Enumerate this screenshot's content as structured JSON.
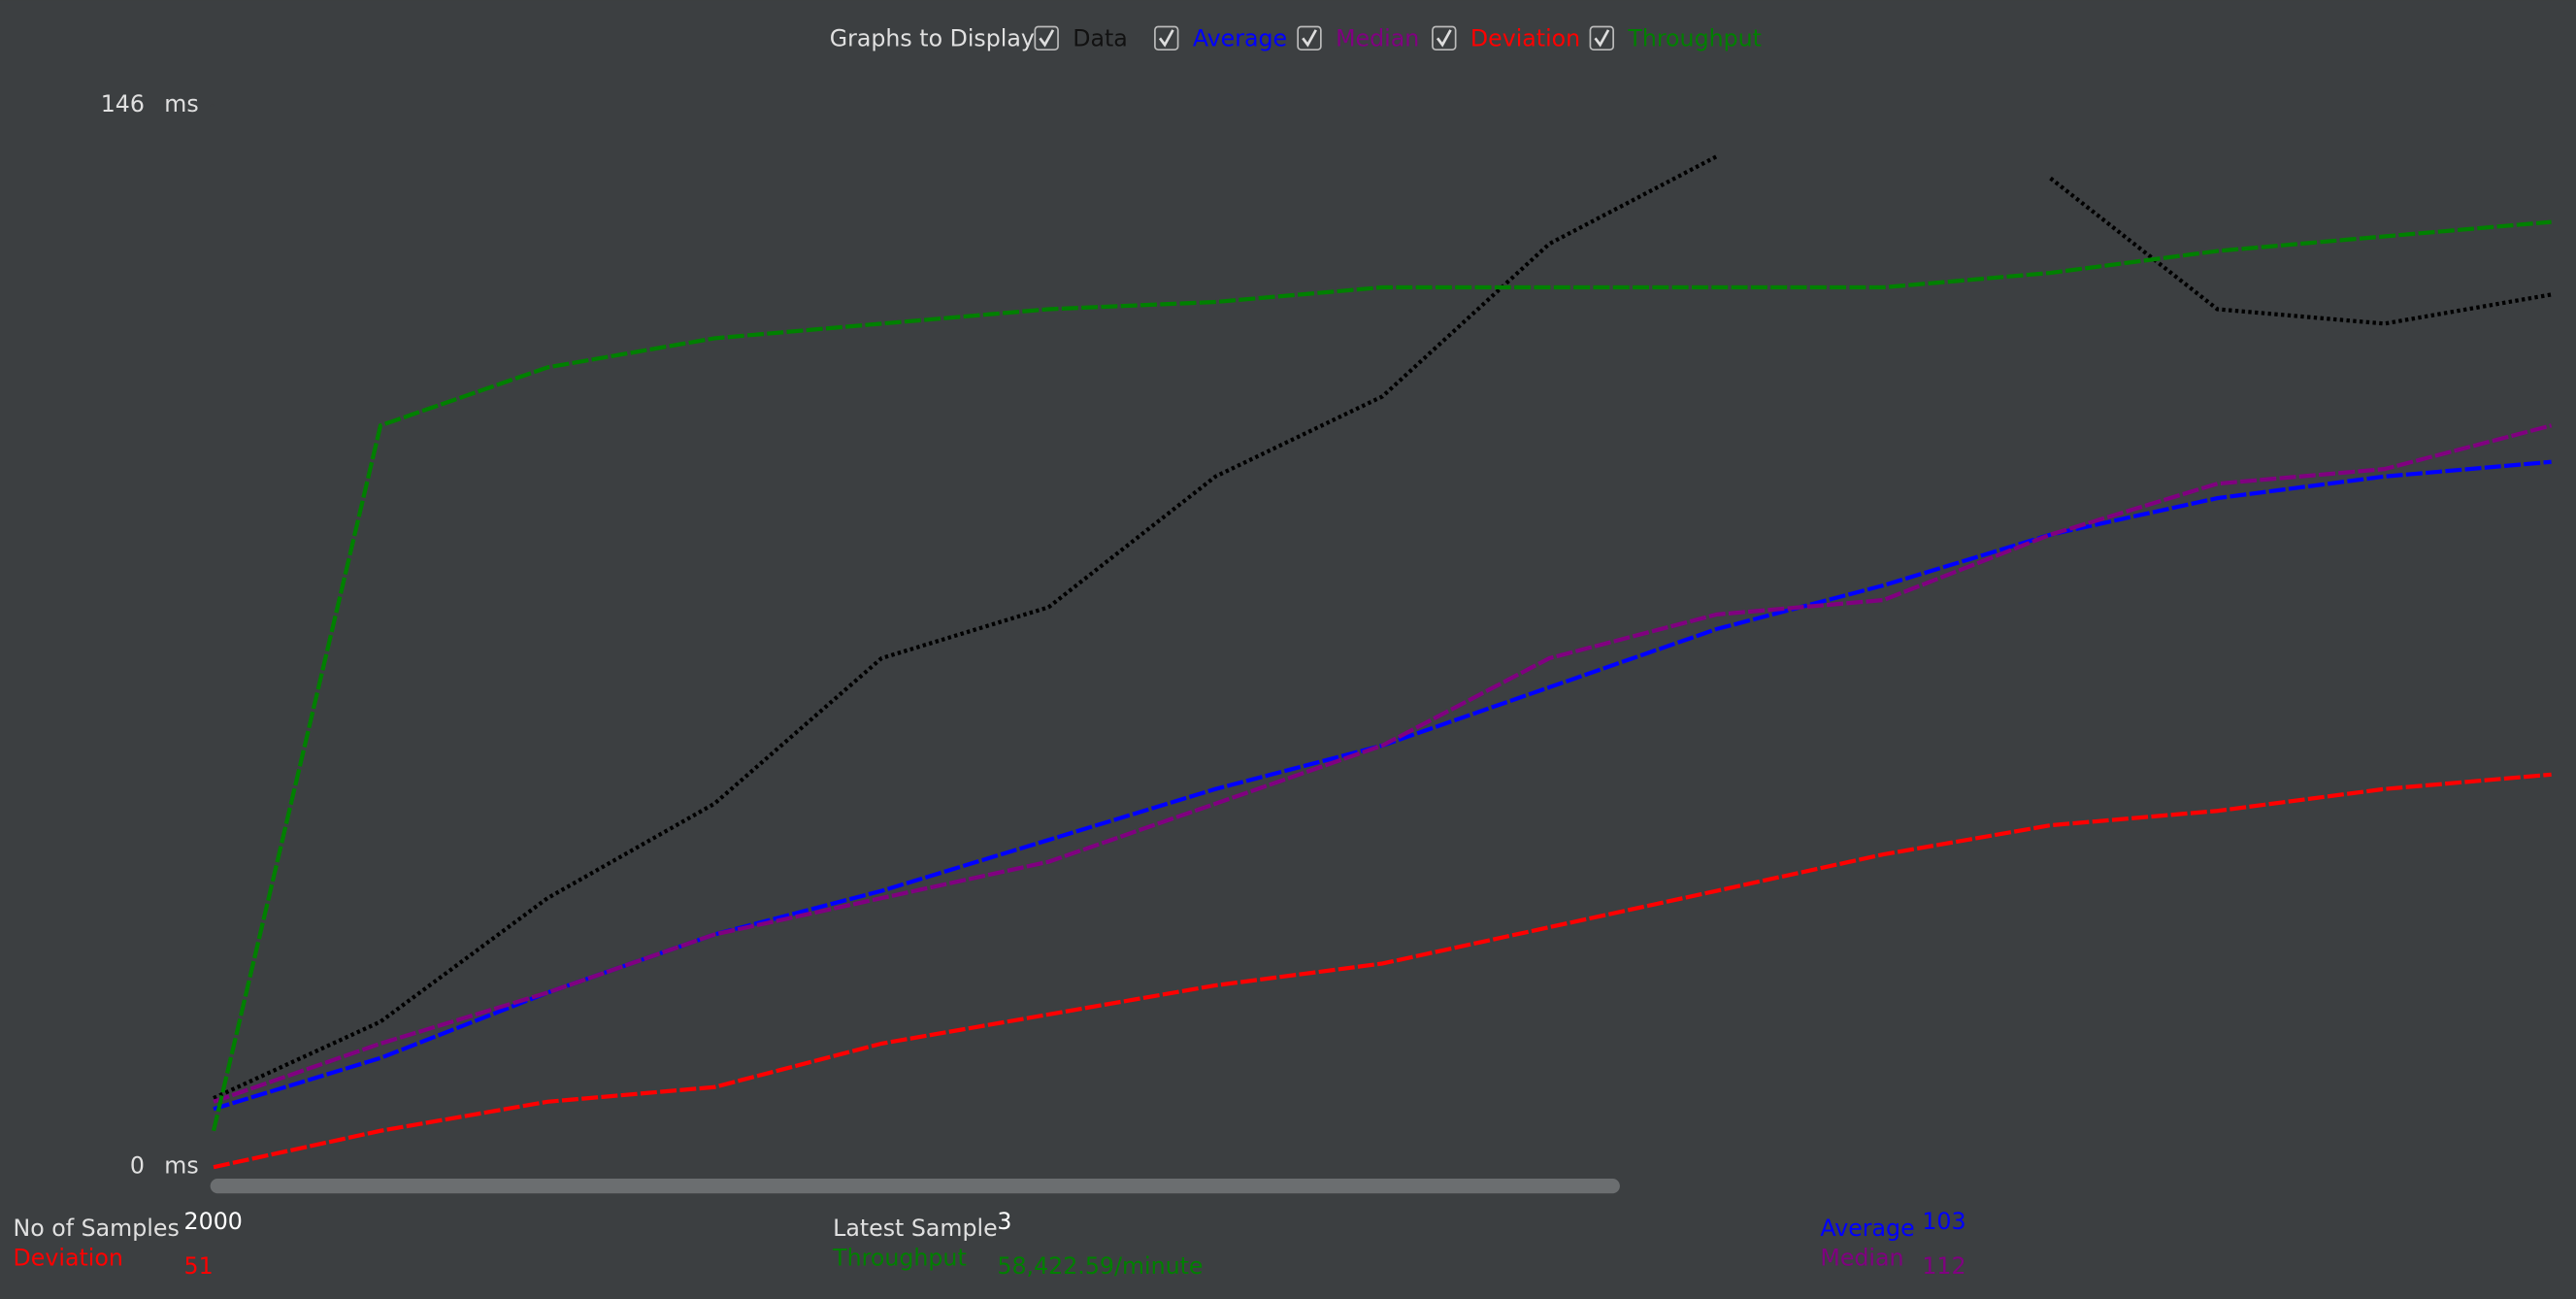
{
  "chart_data": {
    "type": "line",
    "y_unit": "ms",
    "ylim": [
      0,
      146
    ],
    "yticks": [
      0,
      146
    ],
    "categories": [
      null,
      null,
      null,
      null,
      null,
      null,
      null,
      null,
      null,
      null,
      null,
      null,
      null,
      null,
      null
    ],
    "series": [
      {
        "name": "Data",
        "color": "#000000",
        "values": [
          9.5,
          20,
          37,
          50,
          70,
          77,
          95,
          106,
          127,
          139,
          null,
          136,
          118,
          116,
          120
        ]
      },
      {
        "name": "Average",
        "color": "#0000ff",
        "values": [
          8,
          15,
          24,
          32,
          38,
          45,
          52,
          58,
          66,
          74,
          80,
          87,
          92,
          95,
          97
        ]
      },
      {
        "name": "Median",
        "color": "#800080",
        "values": [
          9,
          17,
          24,
          32,
          37,
          42,
          50,
          58,
          70,
          76,
          78,
          87,
          94,
          96,
          102
        ]
      },
      {
        "name": "Deviation",
        "color": "#ff0000",
        "values": [
          0,
          5,
          9,
          11,
          17,
          21,
          25,
          28,
          33,
          38,
          43,
          47,
          49,
          52,
          54
        ]
      },
      {
        "name": "Throughput",
        "color": "#008000",
        "values": [
          5,
          102,
          110,
          114,
          116,
          118,
          119,
          121,
          121,
          121,
          121,
          123,
          126,
          128,
          130
        ]
      }
    ]
  },
  "controls": {
    "label": "Graphs to Display"
  },
  "stats": {
    "samples_label": "No of Samples",
    "samples": 2000,
    "latest_label": "Latest Sample",
    "latest": 3,
    "deviation": 51,
    "throughput": "58,422.59/minute",
    "average": 103,
    "median": 112
  }
}
